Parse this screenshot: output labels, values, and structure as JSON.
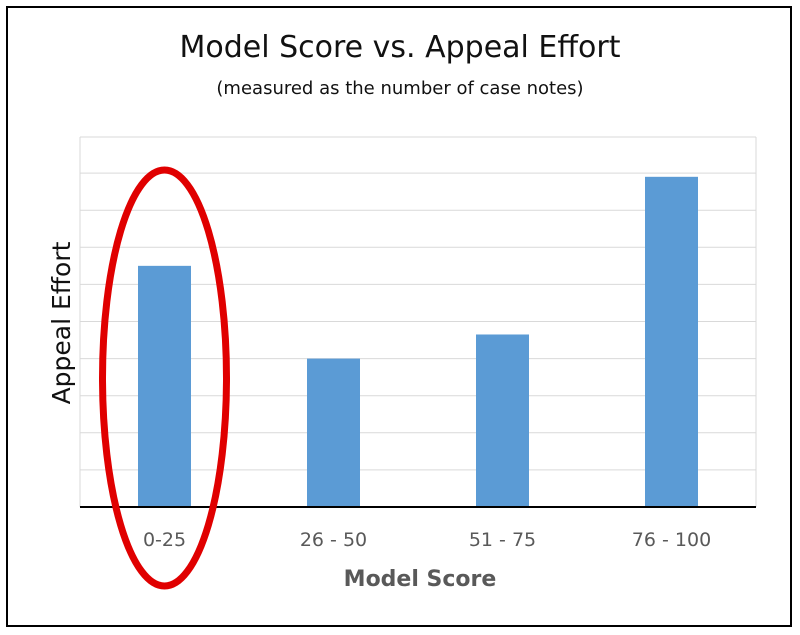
{
  "chart_data": {
    "type": "bar",
    "title": "Model Score vs. Appeal Effort",
    "subtitle": "(measured as the number of case notes)",
    "xlabel": "Model Score",
    "ylabel": "Appeal Effort",
    "categories": [
      "0-25",
      "26 - 50",
      "51 - 75",
      "76 - 100"
    ],
    "values": [
      6.5,
      4.0,
      4.65,
      8.9
    ],
    "ylim": [
      0,
      10
    ],
    "grid": true,
    "y_tick_labels_shown": false,
    "bar_color": "#5b9bd5",
    "annotation": {
      "shape": "ellipse",
      "color": "#e00000",
      "highlights": "0-25"
    }
  }
}
